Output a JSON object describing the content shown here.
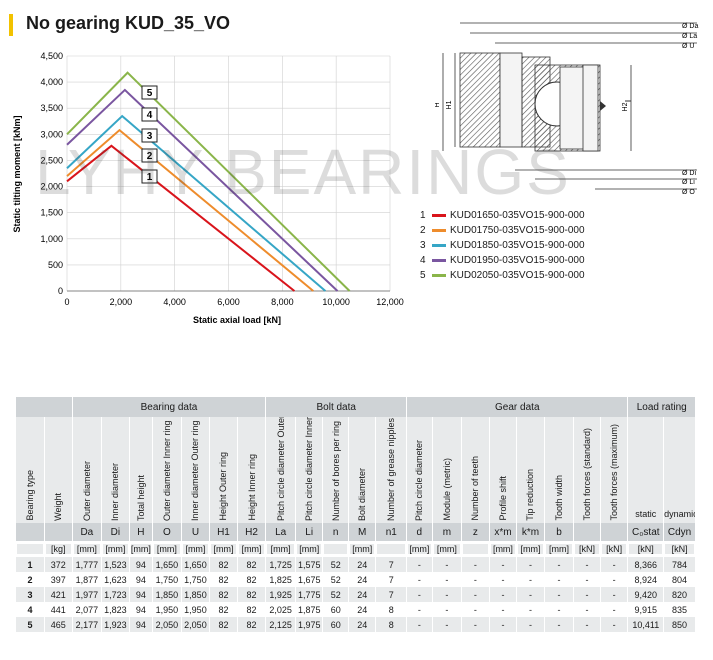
{
  "title": "No gearing KUD_35_VO",
  "watermark": "LYHY BEARINGS",
  "chart_data": {
    "type": "line",
    "xlabel": "Static axial load [kN]",
    "ylabel": "Static tilting moment [kNm]",
    "xlim": [
      0,
      12000
    ],
    "ylim": [
      0,
      4500
    ],
    "x_ticks": [
      "0",
      "2,000",
      "4,000",
      "6,000",
      "8,000",
      "10,000",
      "12,000"
    ],
    "y_ticks": [
      "0",
      "500",
      "1,000",
      "1,500",
      "2,000",
      "2,500",
      "3,000",
      "3,500",
      "4,000",
      "4,500"
    ],
    "x_tick_values": [
      0,
      2000,
      4000,
      6000,
      8000,
      10000,
      12000
    ],
    "y_tick_values": [
      0,
      500,
      1000,
      1500,
      2000,
      2500,
      3000,
      3500,
      4000,
      4500
    ],
    "grid": true,
    "series": [
      {
        "name": "KUD01650-035VO15-900-000",
        "label": "1",
        "color": "#d9141b",
        "x": [
          0,
          1650,
          8450
        ],
        "y": [
          2100,
          2780,
          0
        ]
      },
      {
        "name": "KUD01750-035VO15-900-000",
        "label": "2",
        "color": "#ee8c2c",
        "x": [
          0,
          1950,
          9150
        ],
        "y": [
          2200,
          3080,
          0
        ]
      },
      {
        "name": "KUD01850-035VO15-900-000",
        "label": "3",
        "color": "#36a6c6",
        "x": [
          0,
          2050,
          9600
        ],
        "y": [
          2350,
          3350,
          0
        ]
      },
      {
        "name": "KUD01950-035VO15-900-000",
        "label": "4",
        "color": "#7a56a0",
        "x": [
          0,
          2150,
          10050
        ],
        "y": [
          2800,
          3850,
          0
        ]
      },
      {
        "name": "KUD02050-035VO15-900-000",
        "label": "5",
        "color": "#8ab54a",
        "x": [
          0,
          2250,
          10500
        ],
        "y": [
          3000,
          4180,
          0
        ]
      }
    ]
  },
  "diagram": {
    "dim_labels": [
      "Ø Da",
      "Ø La",
      "Ø U",
      "Ø Di",
      "Ø Li",
      "Ø O"
    ],
    "height_labels": [
      "H",
      "H1",
      "H2"
    ]
  },
  "table": {
    "groups": [
      "Bearing data",
      "Bolt data",
      "Gear data",
      "Load rating"
    ],
    "column_labels": [
      "Bearing type",
      "Weight",
      "Outer diameter",
      "Inner diameter",
      "Total height",
      "Outer diameter Inner ring",
      "Inner diameter Outer ring",
      "Height Outer ring",
      "Height Inner ring",
      "Pitch circle diameter Outer ring",
      "Pitch circle diameter Inner ring",
      "Number of bores per ring",
      "Bolt diameter",
      "Number of grease nipples per level",
      "Pitch circle diameter",
      "Module (metric)",
      "Number of teeth",
      "Profile shift",
      "Tip reduction",
      "Tooth width",
      "Tooth forces (standard)",
      "Tooth forces (maximum)",
      "static",
      "dynamic"
    ],
    "symbols": [
      "",
      "",
      "Da",
      "Di",
      "H",
      "O",
      "U",
      "H1",
      "H2",
      "La",
      "Li",
      "n",
      "M",
      "n1",
      "d",
      "m",
      "z",
      "x*m",
      "k*m",
      "b",
      "",
      "",
      "C₀stat",
      "Cdyn"
    ],
    "units": [
      "",
      "[kg]",
      "[mm]",
      "[mm]",
      "[mm]",
      "[mm]",
      "[mm]",
      "[mm]",
      "[mm]",
      "[mm]",
      "[mm]",
      "",
      "[mm]",
      "",
      "[mm]",
      "[mm]",
      "",
      "[mm]",
      "[mm]",
      "[mm]",
      "[kN]",
      "[kN]",
      "[kN]",
      "[kN]"
    ],
    "rows": [
      [
        "1",
        "372",
        "1,777",
        "1,523",
        "94",
        "1,650",
        "1,650",
        "82",
        "82",
        "1,725",
        "1,575",
        "52",
        "24",
        "7",
        "-",
        "-",
        "-",
        "-",
        "-",
        "-",
        "-",
        "-",
        "8,366",
        "784"
      ],
      [
        "2",
        "397",
        "1,877",
        "1,623",
        "94",
        "1,750",
        "1,750",
        "82",
        "82",
        "1,825",
        "1,675",
        "52",
        "24",
        "7",
        "-",
        "-",
        "-",
        "-",
        "-",
        "-",
        "-",
        "-",
        "8,924",
        "804"
      ],
      [
        "3",
        "421",
        "1,977",
        "1,723",
        "94",
        "1,850",
        "1,850",
        "82",
        "82",
        "1,925",
        "1,775",
        "52",
        "24",
        "7",
        "-",
        "-",
        "-",
        "-",
        "-",
        "-",
        "-",
        "-",
        "9,420",
        "820"
      ],
      [
        "4",
        "441",
        "2,077",
        "1,823",
        "94",
        "1,950",
        "1,950",
        "82",
        "82",
        "2,025",
        "1,875",
        "60",
        "24",
        "8",
        "-",
        "-",
        "-",
        "-",
        "-",
        "-",
        "-",
        "-",
        "9,915",
        "835"
      ],
      [
        "5",
        "465",
        "2,177",
        "1,923",
        "94",
        "2,050",
        "2,050",
        "82",
        "82",
        "2,125",
        "1,975",
        "60",
        "24",
        "8",
        "-",
        "-",
        "-",
        "-",
        "-",
        "-",
        "-",
        "-",
        "10,411",
        "850"
      ]
    ]
  }
}
